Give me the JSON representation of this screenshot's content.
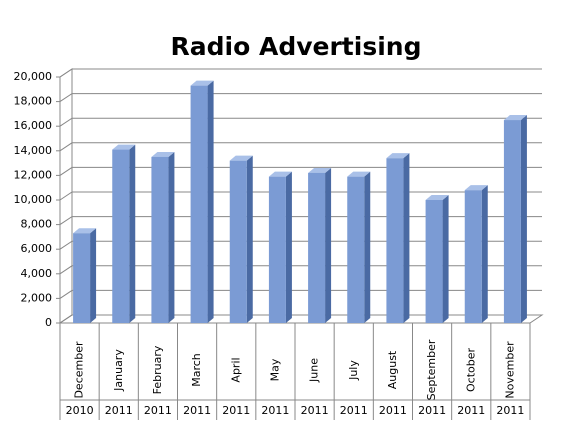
{
  "chart_data": {
    "type": "bar3d",
    "title": "Radio Advertising",
    "categories": [
      "December",
      "January",
      "February",
      "March",
      "April",
      "May",
      "June",
      "July",
      "August",
      "September",
      "October",
      "November"
    ],
    "category_groups": [
      "2010",
      "2011",
      "2011",
      "2011",
      "2011",
      "2011",
      "2011",
      "2011",
      "2011",
      "2011",
      "2011",
      "2011"
    ],
    "values": [
      7300,
      14100,
      13500,
      19300,
      13200,
      11900,
      12200,
      11900,
      13400,
      10000,
      10800,
      16500
    ],
    "color": "#7b9bd4",
    "ylim": [
      0,
      20000
    ],
    "yticks": [
      0,
      {
        "value": 2000,
        "label": "2,000"
      },
      {
        "value": 4000,
        "label": "4,000"
      },
      {
        "value": 6000,
        "label": "6,000"
      },
      {
        "value": 8000,
        "label": "8,000"
      },
      {
        "value": 10000,
        "label": "10,000"
      },
      {
        "value": 12000,
        "label": "12,000"
      },
      {
        "value": 14000,
        "label": "14,000"
      },
      {
        "value": 16000,
        "label": "16,000"
      },
      {
        "value": 18000,
        "label": "18,000"
      },
      {
        "value": 20000,
        "label": "20,000"
      }
    ],
    "grid": true
  }
}
